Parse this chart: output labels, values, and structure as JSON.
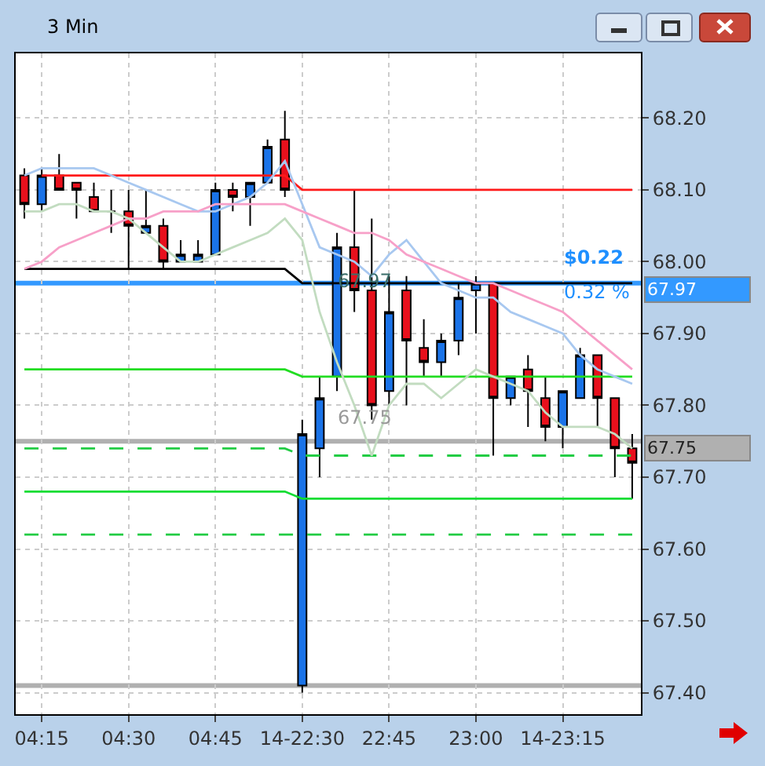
{
  "chart_data": {
    "type": "candlestick",
    "title": "3 Min",
    "categories": [
      null,
      "04:15",
      null,
      null,
      null,
      null,
      "04:30",
      null,
      null,
      null,
      null,
      "04:45",
      null,
      null,
      null,
      null,
      "14-22:30",
      null,
      null,
      null,
      null,
      "22:45",
      null,
      null,
      null,
      null,
      "23:00",
      null,
      null,
      null,
      null,
      "14-23:15",
      null,
      null,
      null,
      null
    ],
    "ohlc": [
      [
        68.12,
        68.13,
        68.06,
        68.08
      ],
      [
        68.08,
        68.13,
        68.07,
        68.12
      ],
      [
        68.12,
        68.15,
        68.1,
        68.1
      ],
      [
        68.11,
        68.11,
        68.06,
        68.1
      ],
      [
        68.09,
        68.11,
        68.07,
        68.07
      ],
      [
        68.07,
        68.1,
        68.04,
        68.07
      ],
      [
        68.07,
        68.1,
        67.99,
        68.05
      ],
      [
        68.04,
        68.1,
        68.04,
        68.05
      ],
      [
        68.05,
        68.06,
        67.99,
        68.0
      ],
      [
        68.0,
        68.03,
        68.0,
        68.01
      ],
      [
        68.0,
        68.03,
        68.0,
        68.01
      ],
      [
        68.01,
        68.11,
        68.01,
        68.1
      ],
      [
        68.1,
        68.11,
        68.07,
        68.09
      ],
      [
        68.09,
        68.11,
        68.05,
        68.11
      ],
      [
        68.11,
        68.17,
        68.11,
        68.16
      ],
      [
        68.17,
        68.21,
        68.09,
        68.1
      ],
      [
        67.41,
        67.78,
        67.4,
        67.76
      ],
      [
        67.74,
        67.84,
        67.7,
        67.81
      ],
      [
        67.84,
        68.04,
        67.82,
        68.02
      ],
      [
        68.02,
        68.1,
        67.93,
        67.96
      ],
      [
        67.96,
        68.06,
        67.78,
        67.8
      ],
      [
        67.82,
        67.98,
        67.8,
        67.93
      ],
      [
        67.96,
        67.98,
        67.8,
        67.89
      ],
      [
        67.88,
        67.92,
        67.84,
        67.86
      ],
      [
        67.86,
        67.9,
        67.84,
        67.89
      ],
      [
        67.89,
        67.97,
        67.87,
        67.95
      ],
      [
        67.96,
        67.98,
        67.9,
        67.97
      ],
      [
        67.97,
        67.97,
        67.73,
        67.81
      ],
      [
        67.81,
        67.84,
        67.8,
        67.84
      ],
      [
        67.85,
        67.87,
        67.77,
        67.82
      ],
      [
        67.81,
        67.84,
        67.75,
        67.77
      ],
      [
        67.77,
        67.82,
        67.74,
        67.82
      ],
      [
        67.81,
        67.88,
        67.81,
        67.87
      ],
      [
        67.87,
        67.87,
        67.77,
        67.81
      ],
      [
        67.81,
        67.81,
        67.7,
        67.74
      ],
      [
        67.74,
        67.76,
        67.67,
        67.72
      ]
    ],
    "colors": [
      "#e8101c",
      "#1a73e8",
      "#e8101c",
      "#e8101c",
      "#e8101c",
      "#000000",
      "#e8101c",
      "#1a73e8",
      "#e8101c",
      "#1a73e8",
      "#1a73e8",
      "#1a73e8",
      "#e8101c",
      "#1a73e8",
      "#1a73e8",
      "#e8101c",
      "#1a73e8",
      "#1a73e8",
      "#1a73e8",
      "#e8101c",
      "#e8101c",
      "#1a73e8",
      "#e8101c",
      "#e8101c",
      "#1a73e8",
      "#1a73e8",
      "#1a73e8",
      "#e8101c",
      "#1a73e8",
      "#e8101c",
      "#e8101c",
      "#1a73e8",
      "#1a73e8",
      "#e8101c",
      "#e8101c",
      "#e8101c"
    ],
    "series": [
      {
        "type": "line",
        "color": "#ff1a1a",
        "values": [
          null,
          68.12,
          68.12,
          68.12,
          68.12,
          68.12,
          68.12,
          68.12,
          68.12,
          68.12,
          68.12,
          68.12,
          68.12,
          68.12,
          68.12,
          68.12,
          68.1,
          68.1,
          68.1,
          68.1,
          68.1,
          68.1,
          68.1,
          68.1,
          68.1,
          68.1,
          68.1,
          68.1,
          68.1,
          68.1,
          68.1,
          68.1,
          68.1,
          68.1,
          68.1,
          68.1
        ]
      },
      {
        "type": "line",
        "color": "#000000",
        "values": [
          67.99,
          67.99,
          67.99,
          67.99,
          67.99,
          67.99,
          67.99,
          67.99,
          67.99,
          67.99,
          67.99,
          67.99,
          67.99,
          67.99,
          67.99,
          67.99,
          67.97,
          67.97,
          67.97,
          67.97,
          67.97,
          67.97,
          67.97,
          67.97,
          67.97,
          67.97,
          67.97,
          67.97,
          67.97,
          67.97,
          67.97,
          67.97,
          67.97,
          67.97,
          67.97,
          67.97
        ]
      },
      {
        "type": "line",
        "color": "#22dd22",
        "values": [
          67.85,
          67.85,
          67.85,
          67.85,
          67.85,
          67.85,
          67.85,
          67.85,
          67.85,
          67.85,
          67.85,
          67.85,
          67.85,
          67.85,
          67.85,
          67.85,
          67.84,
          67.84,
          67.84,
          67.84,
          67.84,
          67.84,
          67.84,
          67.84,
          67.84,
          67.84,
          67.84,
          67.84,
          67.84,
          67.84,
          67.84,
          67.84,
          67.84,
          67.84,
          67.84,
          67.84
        ]
      },
      {
        "type": "line",
        "color": "#22cc44",
        "line_style": "dashed",
        "values": [
          67.74,
          67.74,
          67.74,
          67.74,
          67.74,
          67.74,
          67.74,
          67.74,
          67.74,
          67.74,
          67.74,
          67.74,
          67.74,
          67.74,
          67.74,
          67.74,
          67.73,
          67.73,
          67.73,
          67.73,
          67.73,
          67.73,
          67.73,
          67.73,
          67.73,
          67.73,
          67.73,
          67.73,
          67.73,
          67.73,
          67.73,
          67.73,
          67.73,
          67.73,
          67.73,
          67.73
        ]
      },
      {
        "type": "line",
        "color": "#11dd33",
        "values": [
          67.68,
          67.68,
          67.68,
          67.68,
          67.68,
          67.68,
          67.68,
          67.68,
          67.68,
          67.68,
          67.68,
          67.68,
          67.68,
          67.68,
          67.68,
          67.68,
          67.67,
          67.67,
          67.67,
          67.67,
          67.67,
          67.67,
          67.67,
          67.67,
          67.67,
          67.67,
          67.67,
          67.67,
          67.67,
          67.67,
          67.67,
          67.67,
          67.67,
          67.67,
          67.67,
          67.67
        ]
      },
      {
        "type": "line",
        "color": "#22cc44",
        "line_style": "dashed",
        "values": [
          67.62,
          67.62,
          67.62,
          67.62,
          67.62,
          67.62,
          67.62,
          67.62,
          67.62,
          67.62,
          67.62,
          67.62,
          67.62,
          67.62,
          67.62,
          67.62,
          67.62,
          67.62,
          67.62,
          67.62,
          67.62,
          67.62,
          67.62,
          67.62,
          67.62,
          67.62,
          67.62,
          67.62,
          67.62,
          67.62,
          67.62,
          67.62,
          67.62,
          67.62,
          67.62,
          67.62
        ]
      },
      {
        "type": "line",
        "color": "#a8c8f0",
        "values": [
          68.12,
          68.13,
          68.13,
          68.13,
          68.13,
          68.12,
          68.11,
          68.1,
          68.09,
          68.08,
          68.07,
          68.07,
          68.08,
          68.09,
          68.11,
          68.14,
          68.08,
          68.02,
          68.01,
          68.0,
          67.98,
          68.01,
          68.03,
          68.0,
          67.97,
          67.96,
          67.95,
          67.95,
          67.93,
          67.92,
          67.91,
          67.9,
          67.87,
          67.85,
          67.84,
          67.83
        ]
      },
      {
        "type": "line",
        "color": "#f7a0c8",
        "values": [
          67.99,
          68.0,
          68.02,
          68.03,
          68.04,
          68.05,
          68.06,
          68.06,
          68.07,
          68.07,
          68.07,
          68.08,
          68.08,
          68.08,
          68.08,
          68.08,
          68.07,
          68.06,
          68.05,
          68.04,
          68.04,
          68.03,
          68.01,
          68.0,
          67.99,
          67.98,
          67.97,
          67.97,
          67.96,
          67.95,
          67.94,
          67.93,
          67.91,
          67.89,
          67.87,
          67.85
        ]
      },
      {
        "type": "line",
        "color": "#c2dcc0",
        "values": [
          68.07,
          68.07,
          68.08,
          68.08,
          68.07,
          68.07,
          68.06,
          68.04,
          68.02,
          68.0,
          68.0,
          68.01,
          68.02,
          68.03,
          68.04,
          68.06,
          68.03,
          67.93,
          67.86,
          67.8,
          67.73,
          67.8,
          67.83,
          67.83,
          67.81,
          67.83,
          67.85,
          67.84,
          67.83,
          67.82,
          67.79,
          67.77,
          67.77,
          67.77,
          67.76,
          67.74
        ]
      }
    ],
    "ref_lines": [
      {
        "axis": "y",
        "value": 67.97,
        "label": "67.97",
        "color": "#3399ff"
      },
      {
        "axis": "y",
        "value": 67.75,
        "label": "67.75",
        "color": "#b0b0b0"
      },
      {
        "axis": "y",
        "value": 67.41,
        "color": "#b0b0b0"
      }
    ],
    "annotations": [
      "$0.22",
      "0.32 %",
      "67.97",
      "67.75"
    ],
    "ylim": [
      67.37,
      68.29
    ],
    "yticks": [
      {
        "value": 67.4,
        "label": "67.40"
      },
      {
        "value": 67.5,
        "label": "67.50"
      },
      {
        "value": 67.6,
        "label": "67.60"
      },
      {
        "value": 67.7,
        "label": "67.70"
      },
      {
        "value": 67.8,
        "label": "67.80"
      },
      {
        "value": 67.9,
        "label": "67.90"
      },
      {
        "value": 68.0,
        "label": "68.00"
      },
      {
        "value": 68.1,
        "label": "68.10"
      },
      {
        "value": 68.2,
        "label": "68.20"
      }
    ],
    "grid": true
  }
}
